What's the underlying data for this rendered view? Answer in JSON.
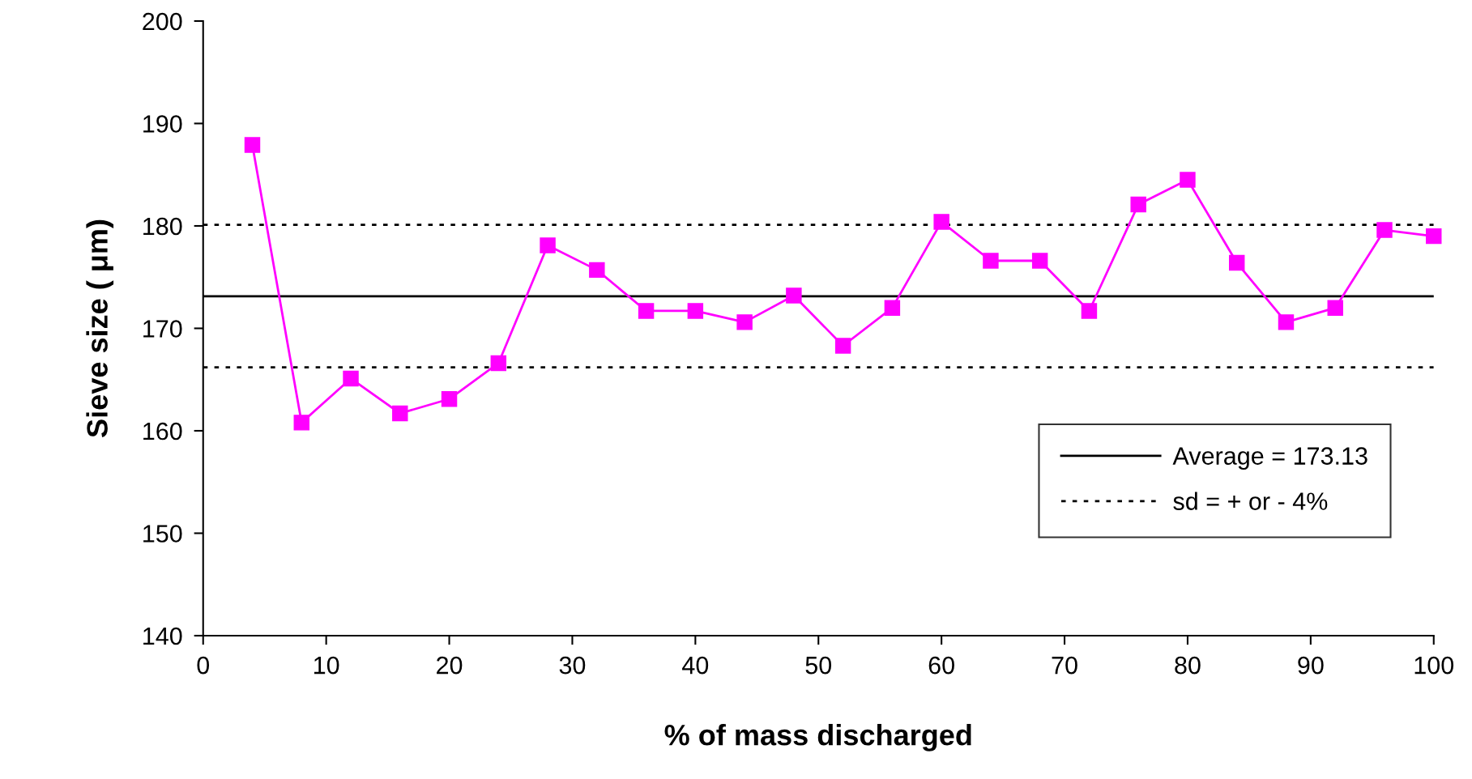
{
  "chart_data": {
    "type": "line",
    "xlabel": "% of mass discharged",
    "ylabel": "Sieve size ( μm)",
    "x": [
      4,
      8,
      12,
      16,
      20,
      24,
      28,
      32,
      36,
      40,
      44,
      48,
      52,
      56,
      60,
      64,
      68,
      72,
      76,
      80,
      84,
      88,
      92,
      96,
      100
    ],
    "series": [
      {
        "color": "#ff00ff",
        "values": [
          187.9,
          160.8,
          165.1,
          161.7,
          163.1,
          166.6,
          178.1,
          175.7,
          171.7,
          171.7,
          170.6,
          173.2,
          168.3,
          172.0,
          180.4,
          176.6,
          176.6,
          171.7,
          182.1,
          184.5,
          176.4,
          170.6,
          172.0,
          179.6,
          179.0
        ]
      }
    ],
    "marker": "square",
    "line_style": "solid",
    "xlim": [
      0,
      100
    ],
    "xticks": [
      0,
      10,
      20,
      30,
      40,
      50,
      60,
      70,
      80,
      90,
      100
    ],
    "ylim": [
      140,
      200
    ],
    "yticks": [
      140,
      150,
      160,
      170,
      180,
      190,
      200
    ],
    "ref_lines": [
      {
        "axis": "y",
        "value": 173.13,
        "label": "Average = 173.13",
        "color": "#000000",
        "line_style": "solid"
      },
      {
        "axis": "y",
        "value": 180.1,
        "label": "sd = + or - 4%",
        "color": "#000000",
        "line_style": "dotted"
      },
      {
        "axis": "y",
        "value": 166.2,
        "color": "#000000",
        "line_style": "dotted"
      }
    ],
    "grid": false,
    "legend": "lower right"
  }
}
